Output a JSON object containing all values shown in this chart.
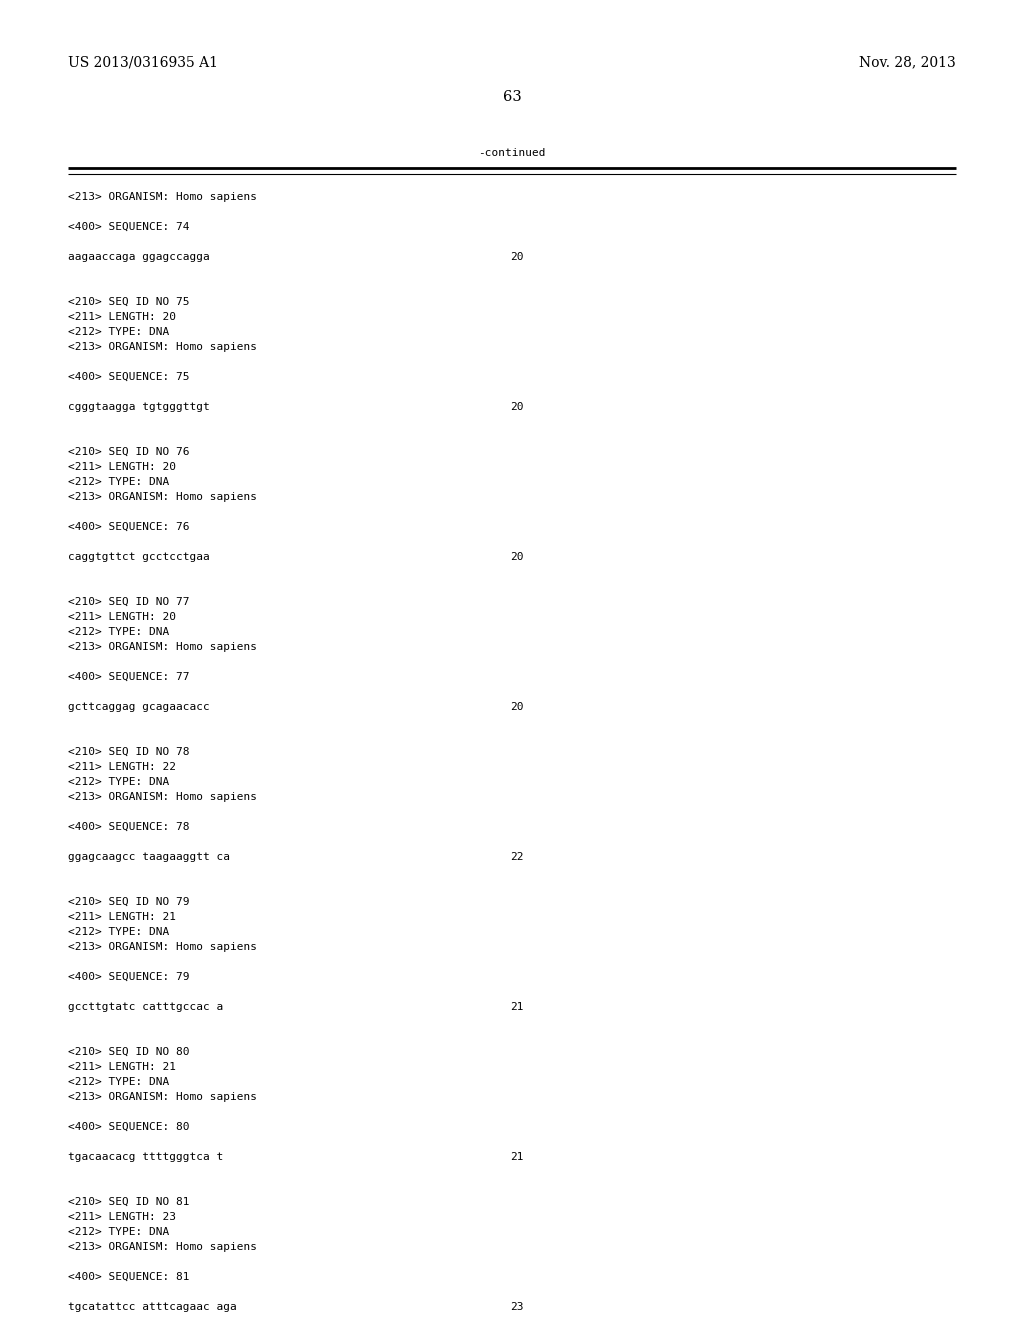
{
  "background_color": "#ffffff",
  "header_left": "US 2013/0316935 A1",
  "header_right": "Nov. 28, 2013",
  "page_number": "63",
  "continued_label": "-continued",
  "monospace_fontsize": 8.0,
  "header_fontsize": 10.0,
  "page_num_fontsize": 10.5,
  "content_lines": [
    {
      "text": "<213> ORGANISM: Homo sapiens",
      "type": "mono"
    },
    {
      "text": "",
      "type": "blank"
    },
    {
      "text": "<400> SEQUENCE: 74",
      "type": "mono"
    },
    {
      "text": "",
      "type": "blank"
    },
    {
      "text": "aagaaccaga ggagccagga",
      "num": "20",
      "type": "seq"
    },
    {
      "text": "",
      "type": "blank"
    },
    {
      "text": "",
      "type": "blank"
    },
    {
      "text": "<210> SEQ ID NO 75",
      "type": "mono"
    },
    {
      "text": "<211> LENGTH: 20",
      "type": "mono"
    },
    {
      "text": "<212> TYPE: DNA",
      "type": "mono"
    },
    {
      "text": "<213> ORGANISM: Homo sapiens",
      "type": "mono"
    },
    {
      "text": "",
      "type": "blank"
    },
    {
      "text": "<400> SEQUENCE: 75",
      "type": "mono"
    },
    {
      "text": "",
      "type": "blank"
    },
    {
      "text": "cgggtaagga tgtgggttgt",
      "num": "20",
      "type": "seq"
    },
    {
      "text": "",
      "type": "blank"
    },
    {
      "text": "",
      "type": "blank"
    },
    {
      "text": "<210> SEQ ID NO 76",
      "type": "mono"
    },
    {
      "text": "<211> LENGTH: 20",
      "type": "mono"
    },
    {
      "text": "<212> TYPE: DNA",
      "type": "mono"
    },
    {
      "text": "<213> ORGANISM: Homo sapiens",
      "type": "mono"
    },
    {
      "text": "",
      "type": "blank"
    },
    {
      "text": "<400> SEQUENCE: 76",
      "type": "mono"
    },
    {
      "text": "",
      "type": "blank"
    },
    {
      "text": "caggtgttct gcctcctgaa",
      "num": "20",
      "type": "seq"
    },
    {
      "text": "",
      "type": "blank"
    },
    {
      "text": "",
      "type": "blank"
    },
    {
      "text": "<210> SEQ ID NO 77",
      "type": "mono"
    },
    {
      "text": "<211> LENGTH: 20",
      "type": "mono"
    },
    {
      "text": "<212> TYPE: DNA",
      "type": "mono"
    },
    {
      "text": "<213> ORGANISM: Homo sapiens",
      "type": "mono"
    },
    {
      "text": "",
      "type": "blank"
    },
    {
      "text": "<400> SEQUENCE: 77",
      "type": "mono"
    },
    {
      "text": "",
      "type": "blank"
    },
    {
      "text": "gcttcaggag gcagaacacc",
      "num": "20",
      "type": "seq"
    },
    {
      "text": "",
      "type": "blank"
    },
    {
      "text": "",
      "type": "blank"
    },
    {
      "text": "<210> SEQ ID NO 78",
      "type": "mono"
    },
    {
      "text": "<211> LENGTH: 22",
      "type": "mono"
    },
    {
      "text": "<212> TYPE: DNA",
      "type": "mono"
    },
    {
      "text": "<213> ORGANISM: Homo sapiens",
      "type": "mono"
    },
    {
      "text": "",
      "type": "blank"
    },
    {
      "text": "<400> SEQUENCE: 78",
      "type": "mono"
    },
    {
      "text": "",
      "type": "blank"
    },
    {
      "text": "ggagcaagcc taagaaggtt ca",
      "num": "22",
      "type": "seq"
    },
    {
      "text": "",
      "type": "blank"
    },
    {
      "text": "",
      "type": "blank"
    },
    {
      "text": "<210> SEQ ID NO 79",
      "type": "mono"
    },
    {
      "text": "<211> LENGTH: 21",
      "type": "mono"
    },
    {
      "text": "<212> TYPE: DNA",
      "type": "mono"
    },
    {
      "text": "<213> ORGANISM: Homo sapiens",
      "type": "mono"
    },
    {
      "text": "",
      "type": "blank"
    },
    {
      "text": "<400> SEQUENCE: 79",
      "type": "mono"
    },
    {
      "text": "",
      "type": "blank"
    },
    {
      "text": "gccttgtatc catttgccac a",
      "num": "21",
      "type": "seq"
    },
    {
      "text": "",
      "type": "blank"
    },
    {
      "text": "",
      "type": "blank"
    },
    {
      "text": "<210> SEQ ID NO 80",
      "type": "mono"
    },
    {
      "text": "<211> LENGTH: 21",
      "type": "mono"
    },
    {
      "text": "<212> TYPE: DNA",
      "type": "mono"
    },
    {
      "text": "<213> ORGANISM: Homo sapiens",
      "type": "mono"
    },
    {
      "text": "",
      "type": "blank"
    },
    {
      "text": "<400> SEQUENCE: 80",
      "type": "mono"
    },
    {
      "text": "",
      "type": "blank"
    },
    {
      "text": "tgacaacacg ttttgggtca t",
      "num": "21",
      "type": "seq"
    },
    {
      "text": "",
      "type": "blank"
    },
    {
      "text": "",
      "type": "blank"
    },
    {
      "text": "<210> SEQ ID NO 81",
      "type": "mono"
    },
    {
      "text": "<211> LENGTH: 23",
      "type": "mono"
    },
    {
      "text": "<212> TYPE: DNA",
      "type": "mono"
    },
    {
      "text": "<213> ORGANISM: Homo sapiens",
      "type": "mono"
    },
    {
      "text": "",
      "type": "blank"
    },
    {
      "text": "<400> SEQUENCE: 81",
      "type": "mono"
    },
    {
      "text": "",
      "type": "blank"
    },
    {
      "text": "tgcatattcc atttcagaac aga",
      "num": "23",
      "type": "seq"
    }
  ]
}
